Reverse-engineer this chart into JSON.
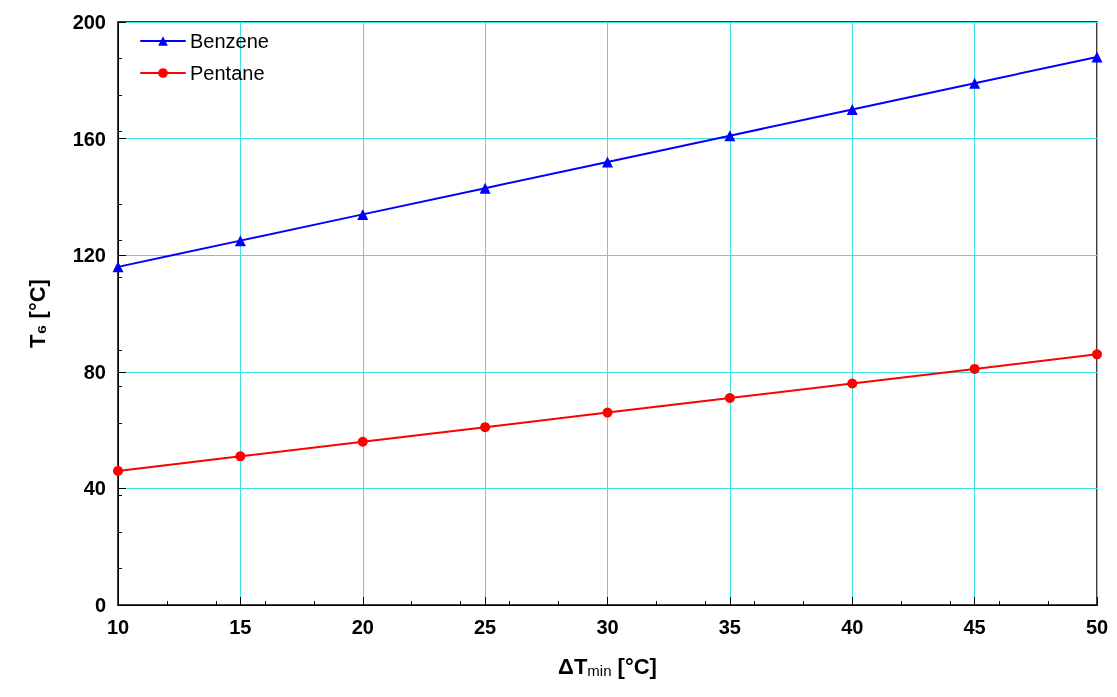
{
  "chart_data": {
    "type": "line",
    "xlabel": "ΔT$_{min}$ [°C]",
    "ylabel": "T₆ [°C]",
    "x": [
      10,
      15,
      20,
      25,
      30,
      35,
      40,
      45,
      50
    ],
    "series": [
      {
        "name": "Benzene",
        "color": "#0000ff",
        "marker": "triangle",
        "values": [
          116,
          125,
          134,
          143,
          152,
          161,
          170,
          179,
          188
        ]
      },
      {
        "name": "Pentane",
        "color": "#ff0000",
        "marker": "circle",
        "values": [
          46,
          51,
          56,
          61,
          66,
          71,
          76,
          81,
          86
        ]
      }
    ],
    "xlim": [
      10,
      50
    ],
    "xticks": [
      10,
      15,
      20,
      25,
      30,
      35,
      40,
      45,
      50
    ],
    "ylim": [
      0,
      200
    ],
    "yticks": [
      0,
      40,
      80,
      120,
      160,
      200
    ],
    "grid": true,
    "legend": "top left",
    "line_style": "solid"
  }
}
